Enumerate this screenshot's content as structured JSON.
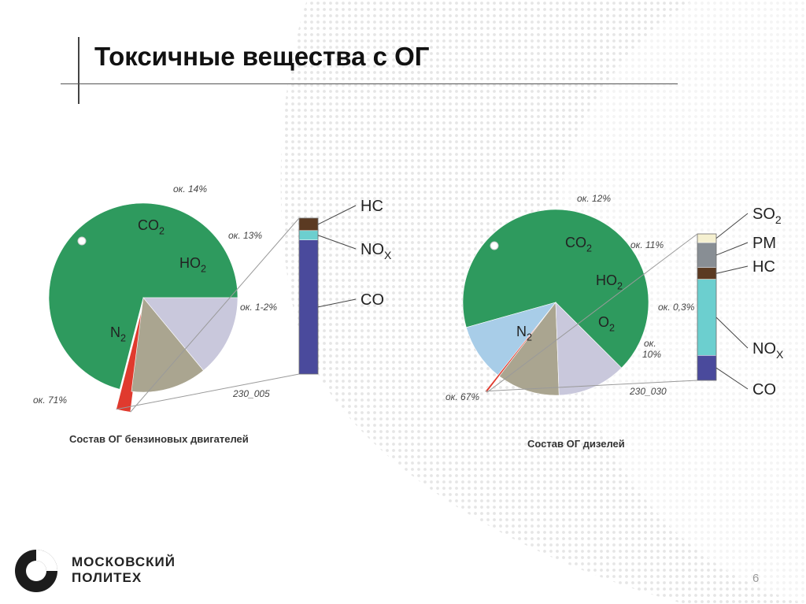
{
  "slide": {
    "title": "Токсичные вещества с ОГ",
    "page_number": "6",
    "logo_line1": "МОСКОВСКИЙ",
    "logo_line2": "ПОЛИТЕХ"
  },
  "colors": {
    "N2": "#2e9a5e",
    "CO2": "#c9c8dc",
    "H2O": "#aaa590",
    "O2": "#a8cde8",
    "toxic": "#e03a2e",
    "HC": "#5b3a22",
    "NOx": "#6ccfcf",
    "CO": "#4a4a9c",
    "SO2": "#f5f0d0",
    "PM": "#888e94",
    "connector": "#9a9a9a"
  },
  "chart_data": [
    {
      "type": "pie",
      "id": "gasoline",
      "caption": "Состав ОГ бензиновых двигателей",
      "code": "230_005",
      "slices": [
        {
          "key": "N2",
          "value": 71,
          "label": "ок. 71%"
        },
        {
          "key": "toxic",
          "value": 2,
          "label": "ок. 1-2%"
        },
        {
          "key": "H2O",
          "value": 13,
          "label": "ок. 13%"
        },
        {
          "key": "CO2",
          "value": 14,
          "label": "ок. 14%"
        }
      ],
      "breakdown": [
        {
          "key": "HC",
          "label": "HC",
          "sub": "",
          "share": 0.08
        },
        {
          "key": "NOx",
          "label": "NO",
          "sub": "X",
          "share": 0.06
        },
        {
          "key": "CO",
          "label": "CO",
          "sub": "",
          "share": 0.86
        }
      ]
    },
    {
      "type": "pie",
      "id": "diesel",
      "caption": "Состав ОГ дизелей",
      "code": "230_030",
      "slices": [
        {
          "key": "N2",
          "value": 67,
          "label": "ок. 67%"
        },
        {
          "key": "O2",
          "value": 10,
          "label": "ок. 10%"
        },
        {
          "key": "toxic",
          "value": 0.3,
          "label": "ок. 0,3%"
        },
        {
          "key": "H2O",
          "value": 11,
          "label": "ок. 11%"
        },
        {
          "key": "CO2",
          "value": 12,
          "label": "ок. 12%"
        }
      ],
      "breakdown": [
        {
          "key": "SO2",
          "label": "SO",
          "sub": "2",
          "share": 0.06
        },
        {
          "key": "PM",
          "label": "PM",
          "sub": "",
          "share": 0.17
        },
        {
          "key": "HC",
          "label": "HC",
          "sub": "",
          "share": 0.08
        },
        {
          "key": "NOx",
          "label": "NO",
          "sub": "X",
          "share": 0.52
        },
        {
          "key": "CO",
          "label": "CO",
          "sub": "",
          "share": 0.17
        }
      ]
    }
  ]
}
